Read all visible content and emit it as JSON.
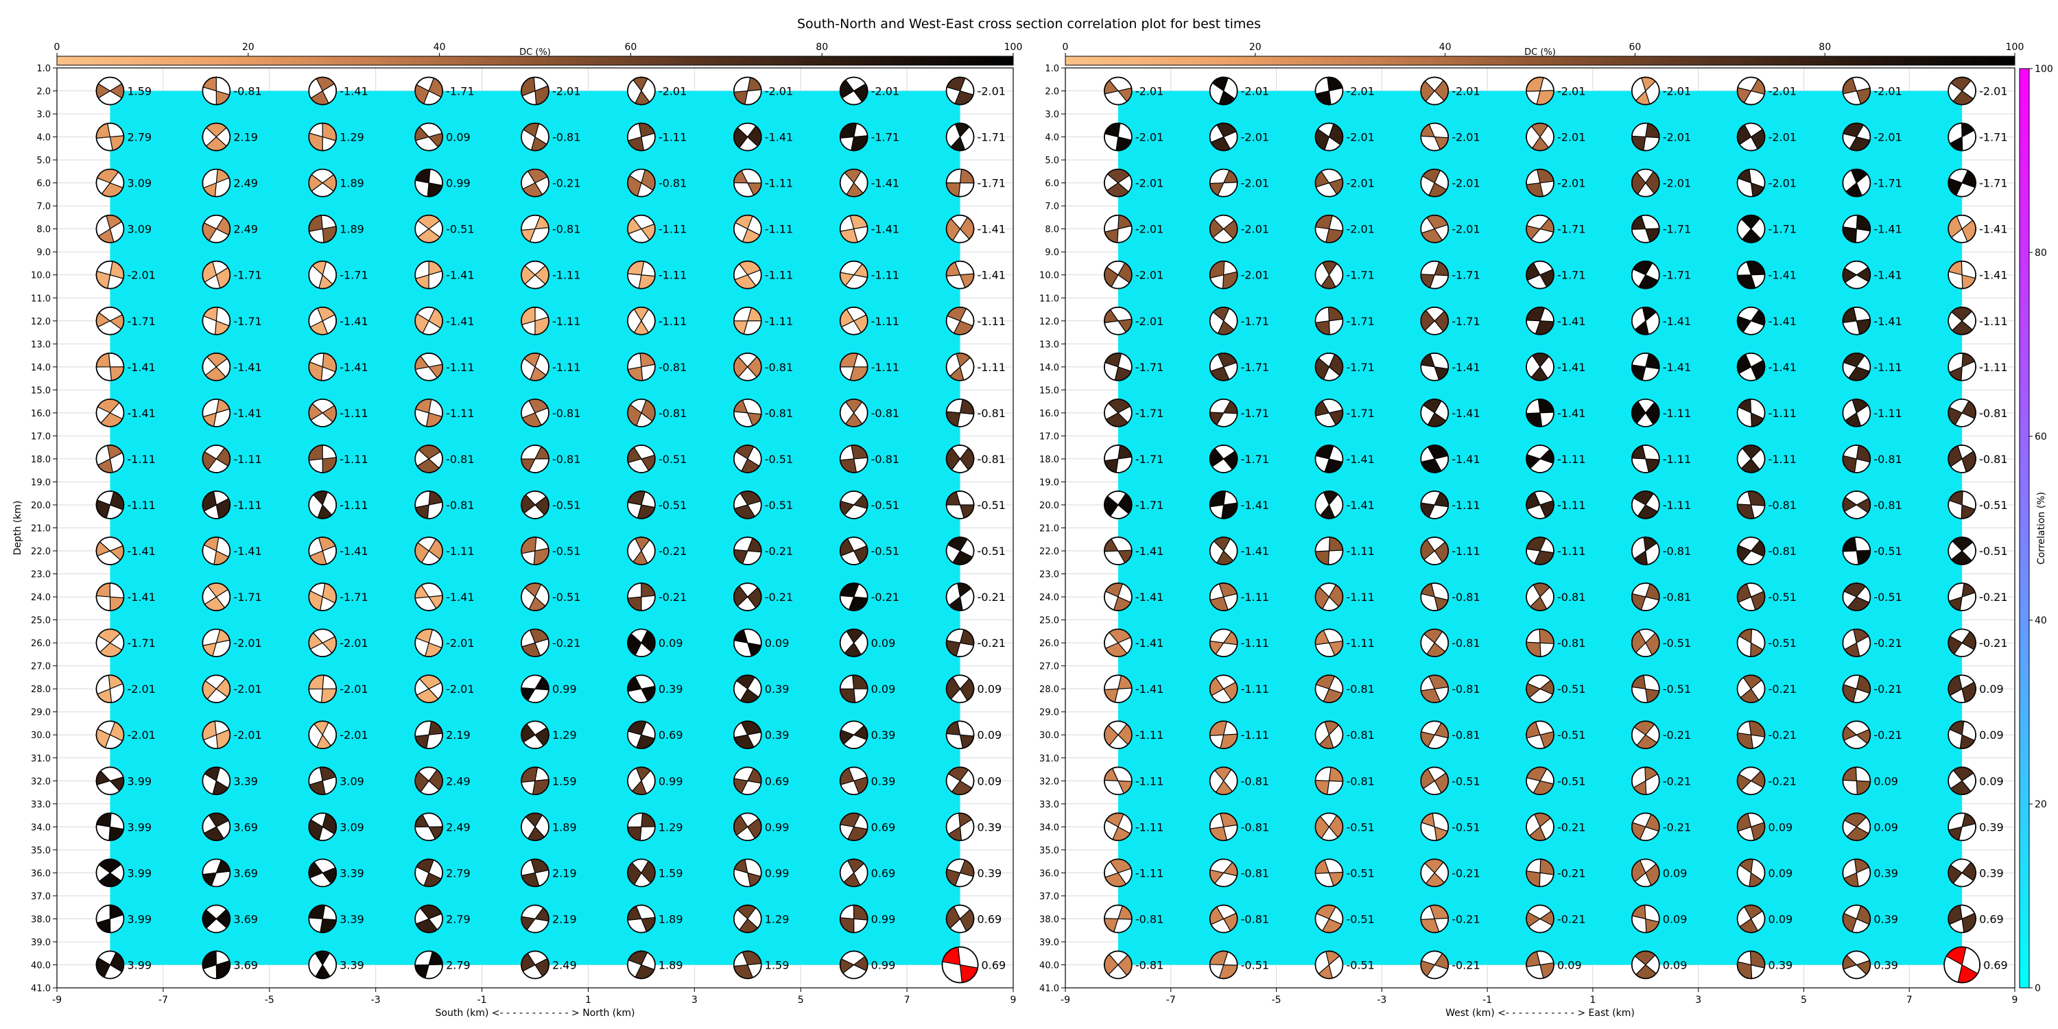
{
  "title": "South-North and West-East cross section correlation plot for best times",
  "dc_colorbar": {
    "label": "DC (%)",
    "ticks": [
      "0",
      "20",
      "40",
      "60",
      "80",
      "100"
    ],
    "stops": [
      "#fcc288",
      "#eda267",
      "#c77d4d",
      "#8f5632",
      "#5a3520",
      "#2a190f",
      "#000000"
    ]
  },
  "corr_colorbar": {
    "label": "Correlation (%)",
    "ticks": [
      "0",
      "20",
      "40",
      "60",
      "80",
      "100"
    ],
    "stops": [
      "#00ffff",
      "#3fbfff",
      "#7f7fff",
      "#bf3fff",
      "#ff00ff"
    ]
  },
  "colors": {
    "correlation_fill": "#0de9f4",
    "best_solution": "#ff0000",
    "grid": "#d9d9d9"
  },
  "chart_data": [
    {
      "type": "heatmap",
      "name": "South-North cross section",
      "xlabel": "South (km) <- - - - - - - - - - - > North (km)",
      "ylabel": "Depth (km)",
      "xlim": [
        -9,
        9
      ],
      "ylim": [
        41,
        1
      ],
      "x_ticks": [
        "-9",
        "-7",
        "-5",
        "-3",
        "-1",
        "1",
        "3",
        "5",
        "7",
        "9"
      ],
      "y_ticks": [
        "1.0",
        "2.0",
        "3.0",
        "4.0",
        "5.0",
        "6.0",
        "7.0",
        "8.0",
        "9.0",
        "10.0",
        "11.0",
        "12.0",
        "13.0",
        "14.0",
        "15.0",
        "16.0",
        "17.0",
        "18.0",
        "19.0",
        "20.0",
        "21.0",
        "22.0",
        "23.0",
        "24.0",
        "25.0",
        "26.0",
        "27.0",
        "28.0",
        "29.0",
        "30.0",
        "31.0",
        "32.0",
        "33.0",
        "34.0",
        "35.0",
        "36.0",
        "37.0",
        "38.0",
        "39.0",
        "40.0",
        "41.0"
      ],
      "x": [
        -8,
        -6,
        -4,
        -2,
        0,
        2,
        4,
        6,
        8
      ],
      "depths": [
        2,
        4,
        6,
        8,
        10,
        12,
        14,
        16,
        18,
        20,
        22,
        24,
        26,
        28,
        30,
        32,
        34,
        36,
        38,
        40
      ],
      "correlation_fill": {
        "x": [
          -8,
          8
        ],
        "depth": [
          2,
          40
        ]
      },
      "best": {
        "x": 8,
        "depth": 40
      },
      "time_labels": [
        [
          "1.59",
          "-0.81",
          "-1.41",
          "-1.71",
          "-2.01",
          "-2.01",
          "-2.01",
          "-2.01",
          "-2.01"
        ],
        [
          "2.79",
          "2.19",
          "1.29",
          "0.09",
          "-0.81",
          "-1.11",
          "-1.41",
          "-1.71",
          "-1.71"
        ],
        [
          "3.09",
          "2.49",
          "1.89",
          "0.99",
          "-0.21",
          "-0.81",
          "-1.11",
          "-1.41",
          "-1.71"
        ],
        [
          "3.09",
          "2.49",
          "1.89",
          "-0.51",
          "-0.81",
          "-1.11",
          "-1.11",
          "-1.41",
          "-1.41"
        ],
        [
          "-2.01",
          "-1.71",
          "-1.71",
          "-1.41",
          "-1.11",
          "-1.11",
          "-1.11",
          "-1.11",
          "-1.41"
        ],
        [
          "-1.71",
          "-1.71",
          "-1.41",
          "-1.41",
          "-1.11",
          "-1.11",
          "-1.11",
          "-1.11",
          "-1.11"
        ],
        [
          "-1.41",
          "-1.41",
          "-1.41",
          "-1.11",
          "-1.11",
          "-0.81",
          "-0.81",
          "-1.11",
          "-1.11"
        ],
        [
          "-1.41",
          "-1.41",
          "-1.11",
          "-1.11",
          "-0.81",
          "-0.81",
          "-0.81",
          "-0.81",
          "-0.81"
        ],
        [
          "-1.11",
          "-1.11",
          "-1.11",
          "-0.81",
          "-0.81",
          "-0.51",
          "-0.51",
          "-0.81",
          "-0.81"
        ],
        [
          "-1.11",
          "-1.11",
          "-1.11",
          "-0.81",
          "-0.51",
          "-0.51",
          "-0.51",
          "-0.51",
          "-0.51"
        ],
        [
          "-1.41",
          "-1.41",
          "-1.41",
          "-1.11",
          "-0.51",
          "-0.21",
          "-0.21",
          "-0.51",
          "-0.51"
        ],
        [
          "-1.41",
          "-1.71",
          "-1.71",
          "-1.41",
          "-0.51",
          "-0.21",
          "-0.21",
          "-0.21",
          "-0.21"
        ],
        [
          "-1.71",
          "-2.01",
          "-2.01",
          "-2.01",
          "-0.21",
          "0.09",
          "0.09",
          "0.09",
          "-0.21"
        ],
        [
          "-2.01",
          "-2.01",
          "-2.01",
          "-2.01",
          "0.99",
          "0.39",
          "0.39",
          "0.09",
          "0.09"
        ],
        [
          "-2.01",
          "-2.01",
          "-2.01",
          "2.19",
          "1.29",
          "0.69",
          "0.39",
          "0.39",
          "0.09"
        ],
        [
          "3.99",
          "3.39",
          "3.09",
          "2.49",
          "1.59",
          "0.99",
          "0.69",
          "0.39",
          "0.09"
        ],
        [
          "3.99",
          "3.69",
          "3.09",
          "2.49",
          "1.89",
          "1.29",
          "0.99",
          "0.69",
          "0.39"
        ],
        [
          "3.99",
          "3.69",
          "3.39",
          "2.79",
          "2.19",
          "1.59",
          "0.99",
          "0.69",
          "0.39"
        ],
        [
          "3.99",
          "3.69",
          "3.39",
          "2.79",
          "2.19",
          "1.89",
          "1.29",
          "0.99",
          "0.69"
        ],
        [
          "3.99",
          "3.69",
          "3.39",
          "2.79",
          "2.49",
          "1.89",
          "1.59",
          "0.99",
          "0.69"
        ]
      ],
      "dc_percent": [
        [
          40,
          30,
          40,
          40,
          50,
          50,
          50,
          90,
          70
        ],
        [
          20,
          20,
          20,
          50,
          50,
          60,
          80,
          90,
          90
        ],
        [
          20,
          20,
          20,
          90,
          40,
          40,
          40,
          40,
          40
        ],
        [
          30,
          30,
          50,
          10,
          10,
          10,
          10,
          10,
          30
        ],
        [
          10,
          10,
          10,
          10,
          10,
          10,
          10,
          10,
          30
        ],
        [
          20,
          10,
          10,
          10,
          10,
          10,
          10,
          10,
          40
        ],
        [
          20,
          20,
          20,
          30,
          30,
          30,
          30,
          30,
          40
        ],
        [
          20,
          20,
          30,
          30,
          40,
          40,
          40,
          40,
          70
        ],
        [
          40,
          50,
          50,
          50,
          50,
          60,
          60,
          60,
          70
        ],
        [
          80,
          80,
          80,
          70,
          70,
          70,
          70,
          70,
          70
        ],
        [
          20,
          20,
          20,
          20,
          40,
          40,
          70,
          70,
          90
        ],
        [
          20,
          10,
          10,
          10,
          40,
          60,
          70,
          95,
          90
        ],
        [
          10,
          10,
          10,
          10,
          50,
          95,
          95,
          80,
          70
        ],
        [
          10,
          10,
          10,
          10,
          95,
          95,
          80,
          70,
          70
        ],
        [
          10,
          10,
          10,
          70,
          80,
          80,
          80,
          80,
          70
        ],
        [
          80,
          80,
          70,
          60,
          60,
          60,
          60,
          60,
          60
        ],
        [
          90,
          80,
          80,
          70,
          70,
          70,
          60,
          60,
          60
        ],
        [
          95,
          90,
          90,
          70,
          70,
          70,
          60,
          60,
          60
        ],
        [
          95,
          95,
          90,
          80,
          70,
          70,
          60,
          60,
          60
        ],
        [
          90,
          95,
          95,
          95,
          70,
          70,
          60,
          60,
          60
        ]
      ]
    },
    {
      "type": "heatmap",
      "name": "West-East cross section",
      "xlabel": "West (km) <- - - - - - - - - - - > East (km)",
      "ylabel": "",
      "xlim": [
        -9,
        9
      ],
      "ylim": [
        41,
        1
      ],
      "x_ticks": [
        "-9",
        "-7",
        "-5",
        "-3",
        "-1",
        "1",
        "3",
        "5",
        "7",
        "9"
      ],
      "y_ticks": [
        "1.0",
        "2.0",
        "3.0",
        "4.0",
        "5.0",
        "6.0",
        "7.0",
        "8.0",
        "9.0",
        "10.0",
        "11.0",
        "12.0",
        "13.0",
        "14.0",
        "15.0",
        "16.0",
        "17.0",
        "18.0",
        "19.0",
        "20.0",
        "21.0",
        "22.0",
        "23.0",
        "24.0",
        "25.0",
        "26.0",
        "27.0",
        "28.0",
        "29.0",
        "30.0",
        "31.0",
        "32.0",
        "33.0",
        "34.0",
        "35.0",
        "36.0",
        "37.0",
        "38.0",
        "39.0",
        "40.0",
        "41.0"
      ],
      "x": [
        -8,
        -6,
        -4,
        -2,
        0,
        2,
        4,
        6,
        8
      ],
      "depths": [
        2,
        4,
        6,
        8,
        10,
        12,
        14,
        16,
        18,
        20,
        22,
        24,
        26,
        28,
        30,
        32,
        34,
        36,
        38,
        40
      ],
      "correlation_fill": {
        "x": [
          -8,
          8
        ],
        "depth": [
          2,
          40
        ]
      },
      "best": {
        "x": 8,
        "depth": 40
      },
      "time_labels": [
        [
          "-2.01",
          "-2.01",
          "-2.01",
          "-2.01",
          "-2.01",
          "-2.01",
          "-2.01",
          "-2.01",
          "-2.01"
        ],
        [
          "-2.01",
          "-2.01",
          "-2.01",
          "-2.01",
          "-2.01",
          "-2.01",
          "-2.01",
          "-2.01",
          "-1.71"
        ],
        [
          "-2.01",
          "-2.01",
          "-2.01",
          "-2.01",
          "-2.01",
          "-2.01",
          "-2.01",
          "-1.71",
          "-1.71"
        ],
        [
          "-2.01",
          "-2.01",
          "-2.01",
          "-2.01",
          "-1.71",
          "-1.71",
          "-1.71",
          "-1.41",
          "-1.41"
        ],
        [
          "-2.01",
          "-2.01",
          "-1.71",
          "-1.71",
          "-1.71",
          "-1.71",
          "-1.41",
          "-1.41",
          "-1.41"
        ],
        [
          "-2.01",
          "-1.71",
          "-1.71",
          "-1.71",
          "-1.41",
          "-1.41",
          "-1.41",
          "-1.41",
          "-1.11"
        ],
        [
          "-1.71",
          "-1.71",
          "-1.71",
          "-1.41",
          "-1.41",
          "-1.41",
          "-1.41",
          "-1.11",
          "-1.11"
        ],
        [
          "-1.71",
          "-1.71",
          "-1.71",
          "-1.41",
          "-1.41",
          "-1.11",
          "-1.11",
          "-1.11",
          "-0.81"
        ],
        [
          "-1.71",
          "-1.71",
          "-1.41",
          "-1.41",
          "-1.11",
          "-1.11",
          "-1.11",
          "-0.81",
          "-0.81"
        ],
        [
          "-1.71",
          "-1.41",
          "-1.41",
          "-1.11",
          "-1.11",
          "-1.11",
          "-0.81",
          "-0.81",
          "-0.51"
        ],
        [
          "-1.41",
          "-1.41",
          "-1.11",
          "-1.11",
          "-1.11",
          "-0.81",
          "-0.81",
          "-0.51",
          "-0.51"
        ],
        [
          "-1.41",
          "-1.11",
          "-1.11",
          "-0.81",
          "-0.81",
          "-0.81",
          "-0.51",
          "-0.51",
          "-0.21"
        ],
        [
          "-1.41",
          "-1.11",
          "-1.11",
          "-0.81",
          "-0.81",
          "-0.51",
          "-0.51",
          "-0.21",
          "-0.21"
        ],
        [
          "-1.41",
          "-1.11",
          "-0.81",
          "-0.81",
          "-0.51",
          "-0.51",
          "-0.21",
          "-0.21",
          "0.09"
        ],
        [
          "-1.11",
          "-1.11",
          "-0.81",
          "-0.81",
          "-0.51",
          "-0.21",
          "-0.21",
          "-0.21",
          "0.09"
        ],
        [
          "-1.11",
          "-0.81",
          "-0.81",
          "-0.51",
          "-0.51",
          "-0.21",
          "-0.21",
          "0.09",
          "0.09"
        ],
        [
          "-1.11",
          "-0.81",
          "-0.51",
          "-0.51",
          "-0.21",
          "-0.21",
          "0.09",
          "0.09",
          "0.39"
        ],
        [
          "-1.11",
          "-0.81",
          "-0.51",
          "-0.21",
          "-0.21",
          "0.09",
          "0.09",
          "0.39",
          "0.39"
        ],
        [
          "-0.81",
          "-0.81",
          "-0.51",
          "-0.21",
          "-0.21",
          "0.09",
          "0.09",
          "0.39",
          "0.69"
        ],
        [
          "-0.81",
          "-0.51",
          "-0.51",
          "-0.21",
          "0.09",
          "0.09",
          "0.39",
          "0.39",
          "0.69"
        ]
      ],
      "dc_percent": [
        [
          40,
          95,
          95,
          40,
          20,
          20,
          40,
          50,
          60
        ],
        [
          95,
          80,
          80,
          40,
          40,
          70,
          80,
          80,
          95
        ],
        [
          60,
          50,
          50,
          50,
          50,
          60,
          80,
          95,
          95
        ],
        [
          50,
          50,
          50,
          40,
          40,
          80,
          95,
          90,
          20
        ],
        [
          50,
          50,
          60,
          60,
          80,
          95,
          95,
          80,
          20
        ],
        [
          50,
          60,
          60,
          60,
          80,
          95,
          95,
          80,
          70
        ],
        [
          70,
          70,
          70,
          80,
          80,
          95,
          95,
          80,
          70
        ],
        [
          70,
          70,
          70,
          80,
          95,
          95,
          80,
          80,
          70
        ],
        [
          80,
          95,
          95,
          95,
          95,
          80,
          80,
          70,
          70
        ],
        [
          95,
          95,
          90,
          80,
          80,
          80,
          70,
          70,
          70
        ],
        [
          60,
          60,
          50,
          50,
          70,
          80,
          80,
          95,
          90
        ],
        [
          40,
          40,
          40,
          50,
          50,
          50,
          60,
          70,
          70
        ],
        [
          30,
          30,
          30,
          40,
          40,
          40,
          50,
          60,
          70
        ],
        [
          30,
          30,
          40,
          40,
          50,
          50,
          50,
          60,
          70
        ],
        [
          30,
          30,
          40,
          40,
          40,
          40,
          50,
          50,
          70
        ],
        [
          30,
          30,
          30,
          40,
          40,
          40,
          50,
          50,
          70
        ],
        [
          30,
          30,
          30,
          30,
          40,
          40,
          50,
          50,
          70
        ],
        [
          30,
          30,
          30,
          30,
          40,
          40,
          50,
          50,
          70
        ],
        [
          30,
          30,
          30,
          30,
          40,
          40,
          50,
          50,
          70
        ],
        [
          30,
          30,
          30,
          40,
          40,
          50,
          50,
          50,
          70
        ]
      ]
    }
  ]
}
